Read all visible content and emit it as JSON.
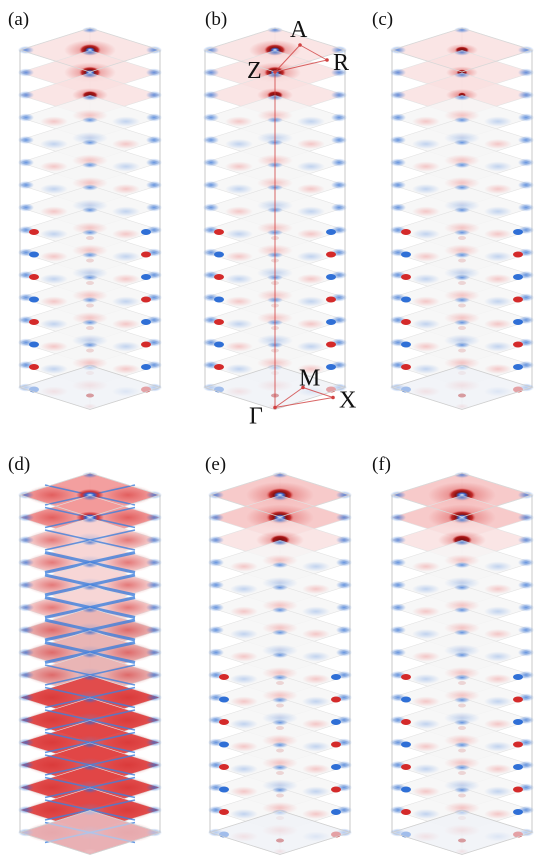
{
  "figure": {
    "panels": [
      {
        "id": "a",
        "label": "(a)",
        "style": "diffuse"
      },
      {
        "id": "b",
        "label": "(b)",
        "style": "diffuse-sharp"
      },
      {
        "id": "c",
        "label": "(c)",
        "style": "dots"
      },
      {
        "id": "d",
        "label": "(d)",
        "style": "intense"
      },
      {
        "id": "e",
        "label": "(e)",
        "style": "strong-top"
      },
      {
        "id": "f",
        "label": "(f)",
        "style": "strong-top"
      }
    ],
    "k_points": [
      {
        "id": "A",
        "label": "A"
      },
      {
        "id": "R",
        "label": "R"
      },
      {
        "id": "Z",
        "label": "Z"
      },
      {
        "id": "M",
        "label": "M"
      },
      {
        "id": "X",
        "label": "X"
      },
      {
        "id": "Gamma",
        "label": "Γ"
      }
    ],
    "colors": {
      "positive": "#d42a2a",
      "dark_positive": "#8a1010",
      "negative": "#2f6fd6",
      "neutral": "#f7f7f7",
      "edge": "#c9c9c9",
      "path": "#d04040"
    },
    "layers_per_stack": 16
  }
}
